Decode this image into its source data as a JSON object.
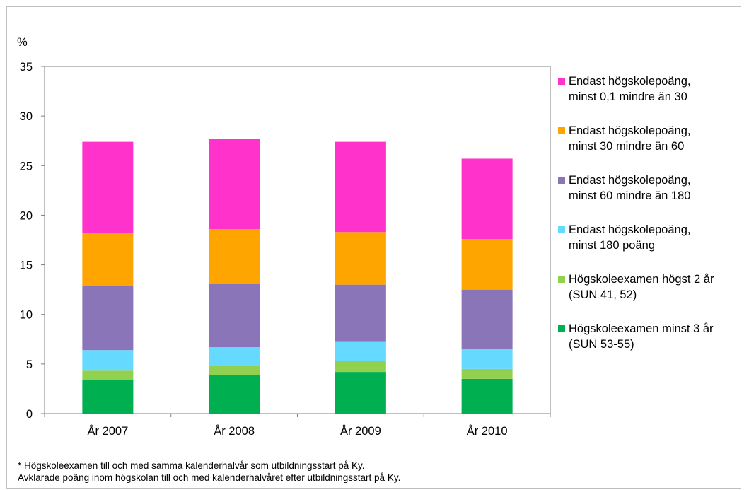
{
  "chart_data": {
    "type": "bar",
    "stacked": true,
    "ylabel": "%",
    "ylim": [
      0,
      35
    ],
    "yticks": [
      0,
      5,
      10,
      15,
      20,
      25,
      30,
      35
    ],
    "grid": false,
    "legend_position": "right",
    "categories": [
      "År 2007",
      "År 2008",
      "År 2009",
      "År 2010"
    ],
    "series": [
      {
        "name": "Högskoleexamen minst 3 år\n(SUN 53-55)",
        "color": "#00b050",
        "values": [
          3.4,
          3.9,
          4.2,
          3.5
        ]
      },
      {
        "name": "Högskoleexamen högst 2 år\n(SUN 41, 52)",
        "color": "#92d050",
        "values": [
          1.0,
          1.0,
          1.1,
          1.0
        ]
      },
      {
        "name": "Endast högskolepoäng,\nminst 180 poäng",
        "color": "#66d9ff",
        "values": [
          2.0,
          1.8,
          2.0,
          2.0
        ]
      },
      {
        "name": "Endast högskolepoäng,\nminst 60 mindre än 180",
        "color": "#8a75b8",
        "values": [
          6.5,
          6.4,
          5.7,
          6.0
        ]
      },
      {
        "name": "Endast högskolepoäng,\nminst 30 mindre än 60",
        "color": "#ffa500",
        "values": [
          5.3,
          5.5,
          5.3,
          5.1
        ]
      },
      {
        "name": "Endast högskolepoäng,\nminst 0,1 mindre än 30",
        "color": "#ff33cc",
        "values": [
          9.2,
          9.1,
          9.1,
          8.1
        ]
      }
    ]
  },
  "footnotes": {
    "line1": "* Högskoleexamen till och med samma kalenderhalvår som utbildningsstart på Ky.",
    "line2": "Avklarade poäng inom högskolan till och med kalenderhalvåret efter utbildningsstart på Ky."
  }
}
